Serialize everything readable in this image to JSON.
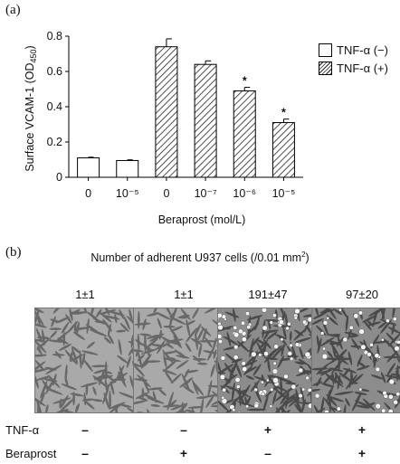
{
  "panel_a_label": "(a)",
  "panel_b_label": "(b)",
  "chart_data": {
    "type": "bar",
    "ylabel": "Surface VCAM-1 (OD",
    "ylabel_sub": "450",
    "ylabel_close": ")",
    "xlabel": "Beraprost (mol/L)",
    "ylim": [
      0,
      0.8
    ],
    "yticks": [
      "0",
      "0.2",
      "0.4",
      "0.6",
      "0.8"
    ],
    "categories": [
      "0",
      "10⁻⁵",
      "0",
      "10⁻⁷",
      "10⁻⁶",
      "10⁻⁵"
    ],
    "series": [
      {
        "name": "TNF-α (−)",
        "values": [
          0.11,
          0.095,
          null,
          null,
          null,
          null
        ],
        "errors": [
          0.004,
          0.004,
          null,
          null,
          null,
          null
        ],
        "style": "open"
      },
      {
        "name": "TNF-α (+)",
        "values": [
          null,
          null,
          0.74,
          0.64,
          0.49,
          0.31
        ],
        "errors": [
          null,
          null,
          0.045,
          0.02,
          0.02,
          0.02
        ],
        "style": "hatched"
      }
    ],
    "annotations": [
      "",
      "",
      "",
      "",
      "*",
      "*"
    ],
    "grid": false,
    "legend_position": "right"
  },
  "panel_b": {
    "title_main": "Number of adherent U937 cells (/0.01 mm",
    "title_sup": "2",
    "title_close": ")",
    "counts": [
      "1±1",
      "1±1",
      "191±47",
      "97±20"
    ],
    "rows": [
      {
        "label": "TNF-α",
        "signs": [
          "–",
          "–",
          "+",
          "+"
        ]
      },
      {
        "label": "Beraprost",
        "signs": [
          "–",
          "+",
          "–",
          "+"
        ]
      }
    ],
    "images": [
      "micrograph-control",
      "micrograph-beraprost",
      "micrograph-tnf",
      "micrograph-tnf-beraprost"
    ]
  }
}
